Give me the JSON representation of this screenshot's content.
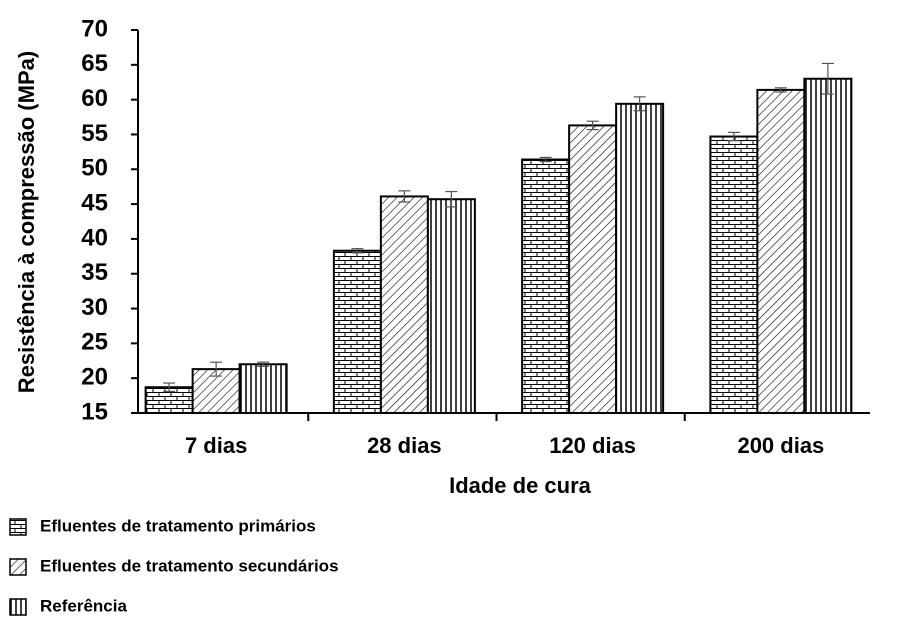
{
  "chart_data": {
    "type": "bar",
    "y_label": "Resistência à compressão (MPa)",
    "x_label": "Idade de cura",
    "categories": [
      "7 dias",
      "28 dias",
      "120 dias",
      "200 dias"
    ],
    "series": [
      {
        "name": "Efluentes de tratamento primários",
        "color": "#000000",
        "pattern": "brick",
        "values": [
          18.7,
          38.3,
          51.4,
          54.7
        ],
        "errors": [
          0.6,
          0.3,
          0.3,
          0.6
        ]
      },
      {
        "name": "Efluentes de tratamento secundários",
        "color": "#000000",
        "pattern": "diagonal",
        "values": [
          21.3,
          46.1,
          56.3,
          61.4
        ],
        "errors": [
          1.0,
          0.8,
          0.6,
          0.3
        ]
      },
      {
        "name": "Referência",
        "color": "#000000",
        "pattern": "vertical",
        "values": [
          22.0,
          45.7,
          59.4,
          63.0
        ],
        "errors": [
          0.3,
          1.1,
          1.0,
          2.2
        ]
      }
    ],
    "ylim": [
      15,
      70
    ],
    "yticks": [
      15,
      20,
      25,
      30,
      35,
      40,
      45,
      50,
      55,
      60,
      65,
      70
    ],
    "grid": false,
    "legend": "bottom-left"
  }
}
